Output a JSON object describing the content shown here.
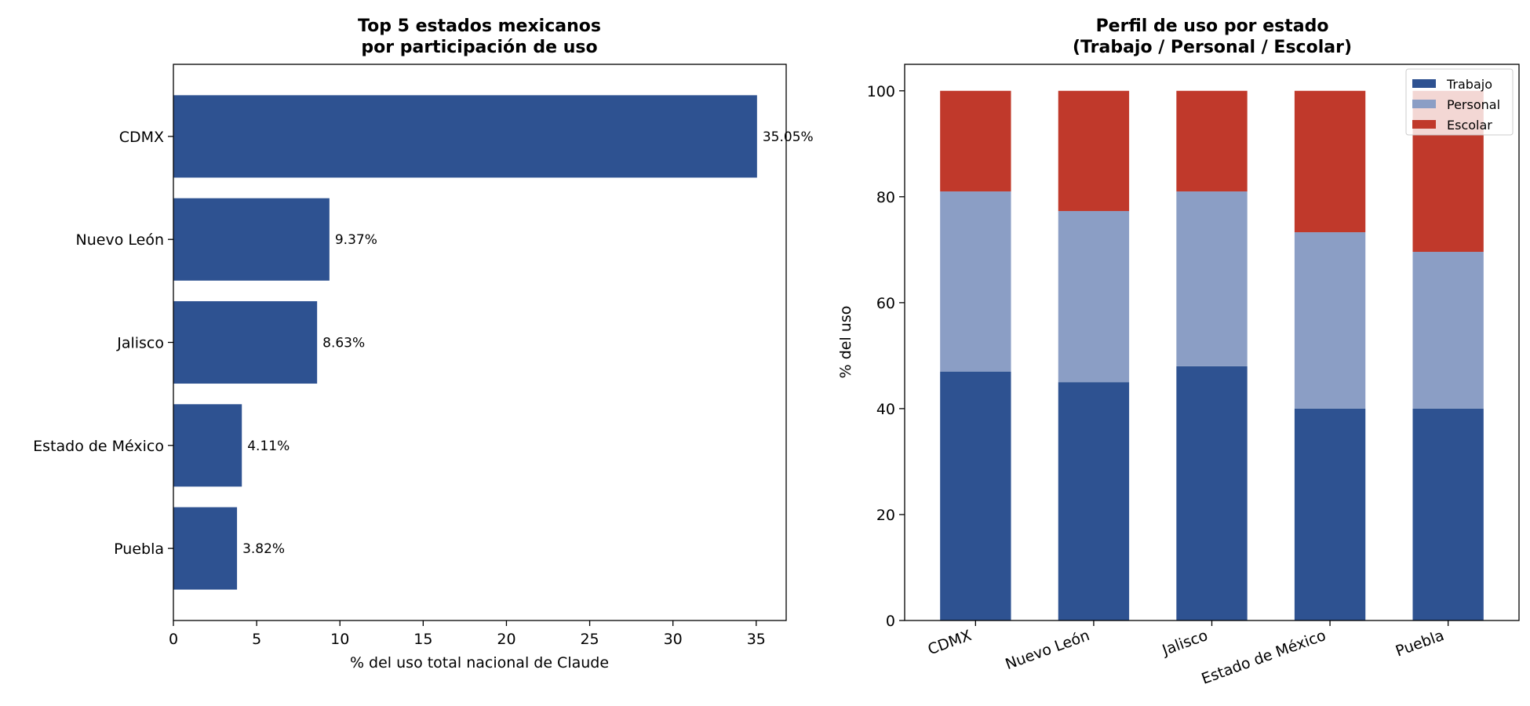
{
  "chart_data": [
    {
      "type": "bar",
      "orientation": "horizontal",
      "title": [
        "Top 5 estados mexicanos",
        "por participación de uso"
      ],
      "xlabel": "% del uso total nacional de Claude",
      "ylabel": "",
      "categories": [
        "CDMX",
        "Nuevo León",
        "Jalisco",
        "Estado de México",
        "Puebla"
      ],
      "values": [
        35.05,
        9.37,
        8.63,
        4.11,
        3.82
      ],
      "data_labels": [
        "35.05%",
        "9.37%",
        "8.63%",
        "4.11%",
        "3.82%"
      ],
      "xlim": [
        0,
        36.8
      ],
      "xticks": [
        0,
        5,
        10,
        15,
        20,
        25,
        30,
        35
      ],
      "grid": false,
      "color": "#2e5291"
    },
    {
      "type": "bar",
      "stacked": true,
      "title": [
        "Perfil de uso por estado",
        "(Trabajo / Personal / Escolar)"
      ],
      "xlabel": "",
      "ylabel": "% del uso",
      "categories": [
        "CDMX",
        "Nuevo León",
        "Jalisco",
        "Estado de México",
        "Puebla"
      ],
      "series": [
        {
          "name": "Trabajo",
          "values": [
            47,
            45,
            48,
            40,
            40
          ],
          "color": "#2e5291"
        },
        {
          "name": "Personal",
          "values": [
            34,
            32.3,
            33,
            33.3,
            29.6
          ],
          "color": "#8b9ec5"
        },
        {
          "name": "Escolar",
          "values": [
            19,
            22.7,
            19,
            26.7,
            30.4
          ],
          "color": "#c0392b"
        }
      ],
      "ylim": [
        0,
        105
      ],
      "yticks": [
        0,
        20,
        40,
        60,
        80,
        100
      ],
      "grid": false,
      "legend": "top-right"
    }
  ]
}
